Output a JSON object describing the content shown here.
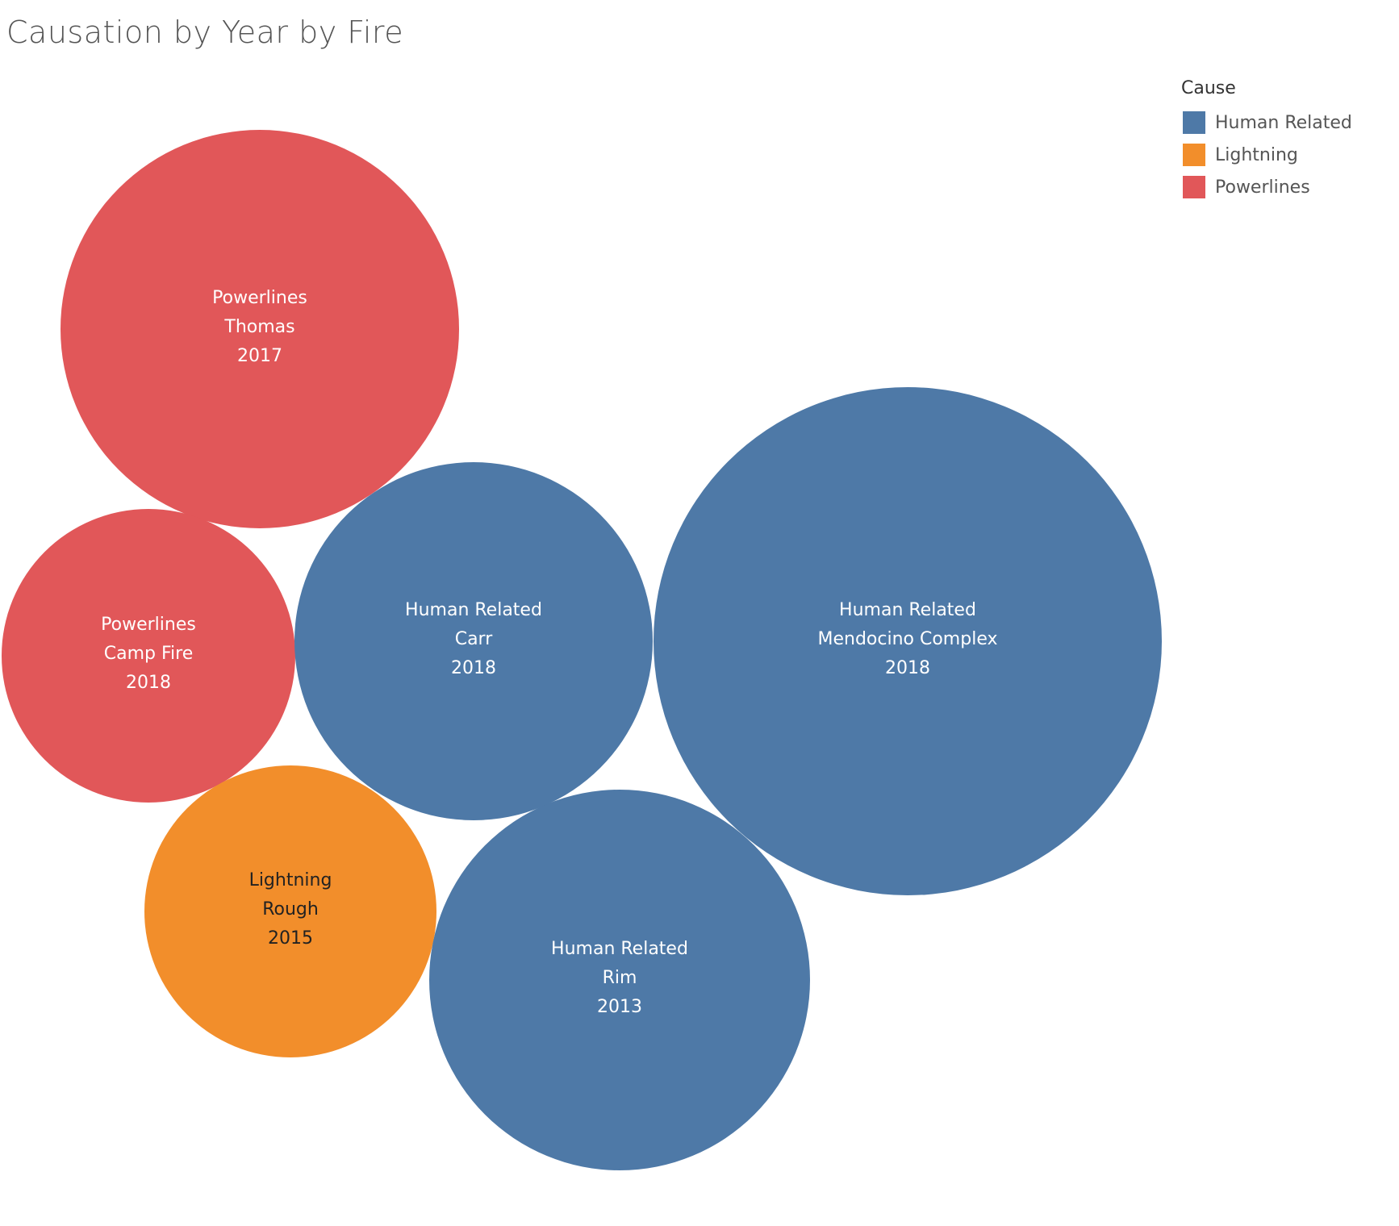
{
  "chart_data": {
    "type": "bubble",
    "title": "Causation by Year by Fire",
    "legend": {
      "title": "Cause",
      "placement": "top-right",
      "items": [
        {
          "label": "Human Related",
          "color": "#4e79a7"
        },
        {
          "label": "Lightning",
          "color": "#f28e2b"
        },
        {
          "label": "Powerlines",
          "color": "#e15759"
        }
      ]
    },
    "bubbles": [
      {
        "cause": "Powerlines",
        "fire": "Thomas",
        "year": "2017",
        "color": "#e15759",
        "label_color": "#ffffff"
      },
      {
        "cause": "Powerlines",
        "fire": "Camp Fire",
        "year": "2018",
        "color": "#e15759",
        "label_color": "#ffffff"
      },
      {
        "cause": "Human Related",
        "fire": "Carr",
        "year": "2018",
        "color": "#4e79a7",
        "label_color": "#ffffff"
      },
      {
        "cause": "Human Related",
        "fire": "Mendocino Complex",
        "year": "2018",
        "color": "#4e79a7",
        "label_color": "#ffffff"
      },
      {
        "cause": "Lightning",
        "fire": "Rough",
        "year": "2015",
        "color": "#f28e2b",
        "label_color": "#222222"
      },
      {
        "cause": "Human Related",
        "fire": "Rim",
        "year": "2013",
        "color": "#4e79a7",
        "label_color": "#ffffff"
      }
    ]
  }
}
